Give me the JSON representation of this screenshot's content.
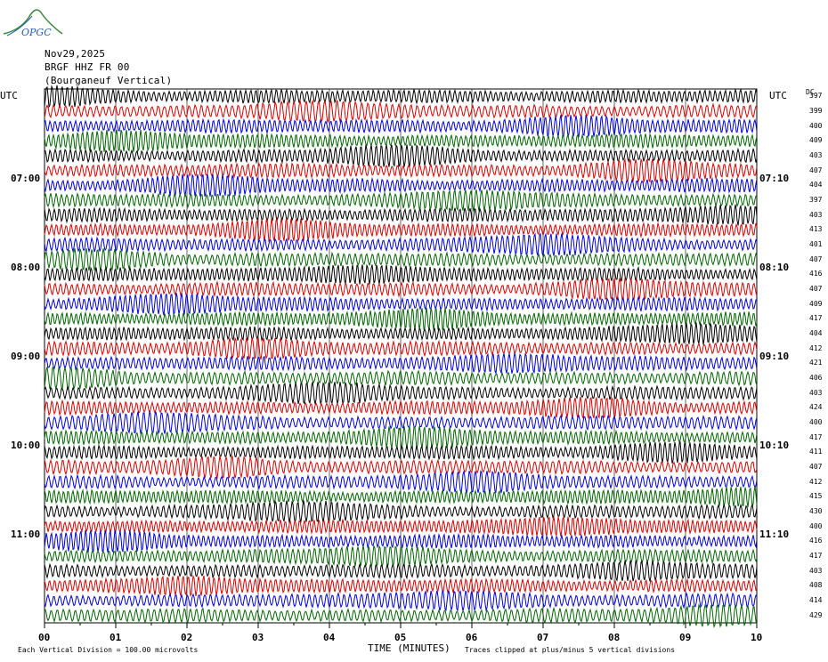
{
  "logo_text": "OPGC",
  "header": {
    "date": "Nov29,2025",
    "station": "BRGF HHZ FR 00",
    "location": "(Bourganeuf Vertical)"
  },
  "utc_label_left": "UTC",
  "utc_label_right": "UTC",
  "dc_label": "DC",
  "colors": [
    "#000000",
    "#dd0000",
    "#0000dd",
    "#006600"
  ],
  "footer": {
    "scale_note": "Each Vertical Division = 100.00 microvolts",
    "clip_note": "Traces clipped at plus/minus 5 vertical divisions"
  },
  "chart_data": {
    "type": "line",
    "title": "",
    "xlabel": "TIME (MINUTES)",
    "xlim": [
      0,
      10
    ],
    "x_ticks": [
      "00",
      "01",
      "02",
      "03",
      "04",
      "05",
      "06",
      "07",
      "08",
      "09",
      "10"
    ],
    "hour_labels_left": [
      "07:00",
      "08:00",
      "09:00",
      "10:00",
      "11:00"
    ],
    "hour_labels_right": [
      "07:10",
      "08:10",
      "09:10",
      "10:10",
      "11:10"
    ],
    "rows_per_hour": 6,
    "first_hour_row": 6,
    "dc_offsets": [
      "397",
      "399",
      "400",
      "409",
      "403",
      "407",
      "404",
      "397",
      "403",
      "413",
      "401",
      "407",
      "416",
      "407",
      "409",
      "417",
      "404",
      "412",
      "421",
      "406",
      "403",
      "424",
      "400",
      "417",
      "411",
      "407",
      "412",
      "415",
      "430",
      "400",
      "416",
      "417",
      "403",
      "408",
      "414",
      "429"
    ],
    "trace_color_cycle": [
      "black",
      "red",
      "blue",
      "green"
    ],
    "grid": true
  }
}
